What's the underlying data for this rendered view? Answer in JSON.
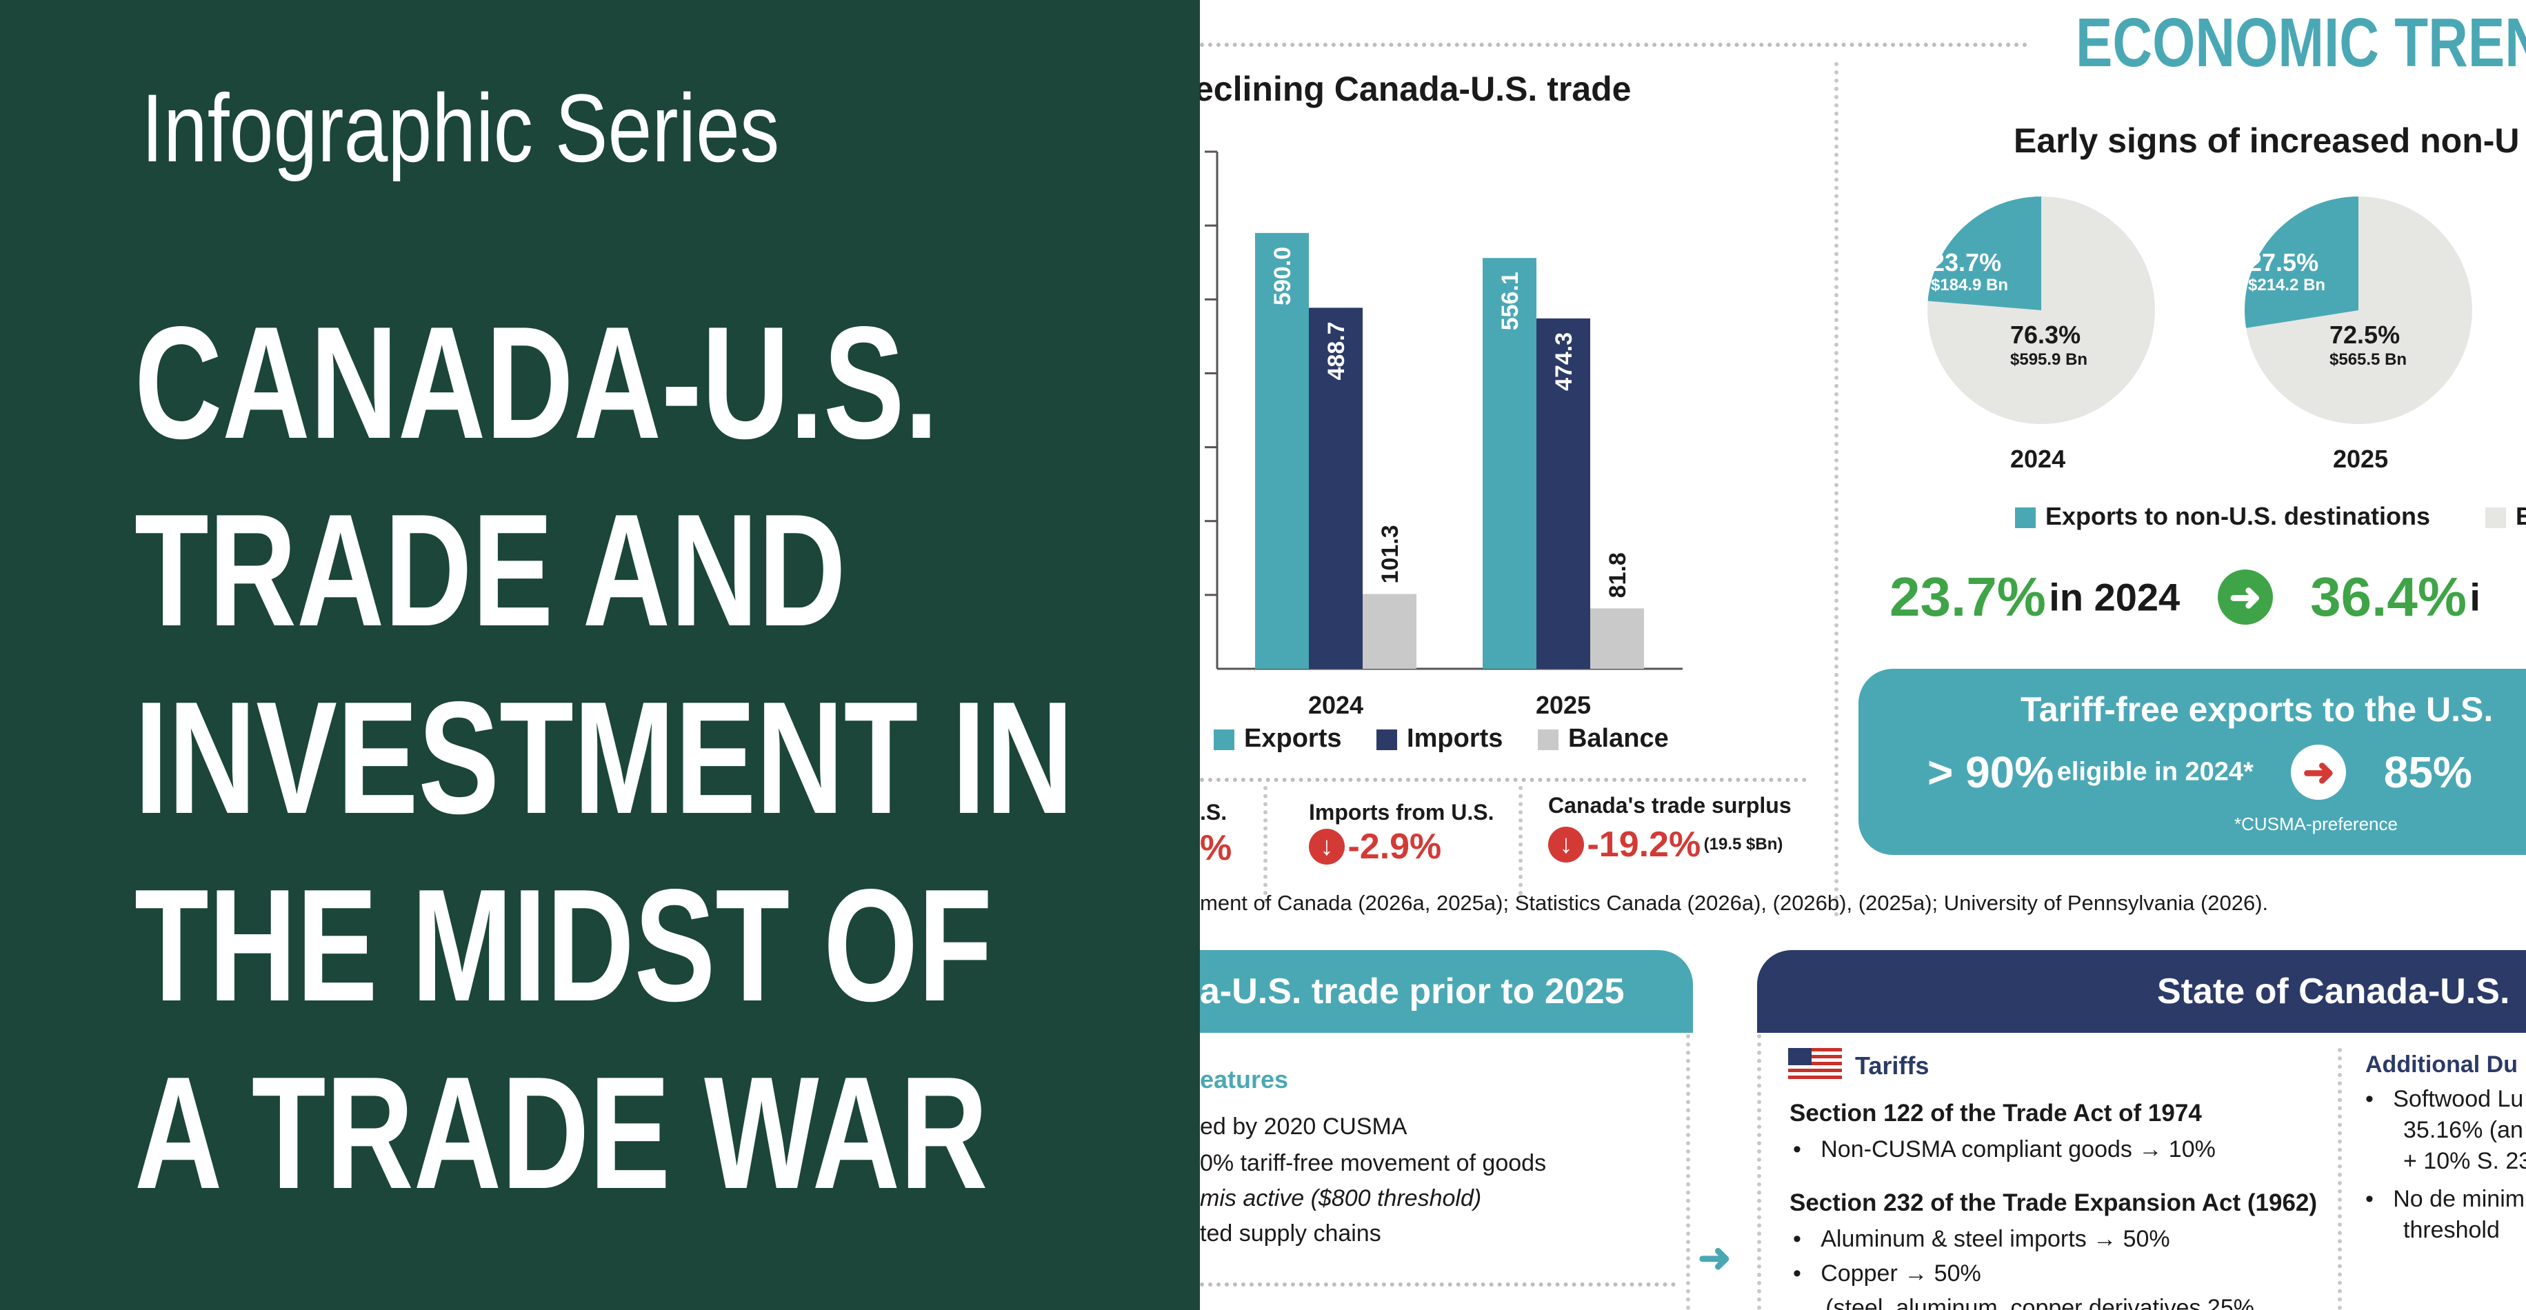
{
  "banner": {
    "series": "Infographic Series",
    "headline_lines": [
      "CANADA-U.S.",
      "TRADE AND",
      "INVESTMENT IN",
      "THE MIDST OF",
      "A TRADE WAR"
    ]
  },
  "infographic": {
    "section_title": "ECONOMIC TREN",
    "trade_chart_title": "eclining Canada-U.S. trade",
    "pie_title": "Early signs of increased non-U",
    "pies": [
      {
        "year": "2024",
        "nonus_pct": "23.7%",
        "nonus_bn": "$184.9 Bn",
        "us_pct": "76.3%",
        "us_bn": "$595.9 Bn",
        "nonus_share": 23.7
      },
      {
        "year": "2025",
        "nonus_pct": "27.5%",
        "nonus_bn": "$214.2 Bn",
        "us_pct": "72.5%",
        "us_bn": "$565.5 Bn",
        "nonus_share": 27.5
      }
    ],
    "pie_legend": {
      "nonus": "Exports to non-U.S. destinations",
      "us": "Ex"
    },
    "growth": {
      "from_value": "23.7%",
      "from_label": "in 2024",
      "to_value": "36.4%",
      "to_label": "i"
    },
    "tariff_box": {
      "title": "Tariff-free exports to the U.S.",
      "from_value": "> 90%",
      "from_label": "eligible in 2024*",
      "to_value": "85%",
      "footnote": "*CUSMA-preference"
    },
    "stats": [
      {
        "label": ".S.",
        "value": "%"
      },
      {
        "label": "Imports from U.S.",
        "value": "-2.9%"
      },
      {
        "label": "Canada's trade surplus",
        "value": "-19.2%",
        "note": "(19.5 $Bn)"
      }
    ],
    "sources": "ment of Canada (2026a, 2025a); Statistics Canada (2026a), (2026b), (2025a); University of Pennsylvania (2026).",
    "prior_box": {
      "title": "a-U.S. trade prior to 2025",
      "subtitle": "eatures",
      "items": [
        "ed by 2020 CUSMA",
        "0% tariff-free movement of goods",
        "mis active ($800 threshold)",
        "ted supply chains"
      ]
    },
    "state_box": {
      "title": "State of Canada-U.S.",
      "tariffs_label": "Tariffs",
      "s122_title": "Section 122 of the Trade Act of 1974",
      "s122_item": "Non-CUSMA compliant goods → 10%",
      "s232_title": "Section 232 of the Trade Expansion Act (1962)",
      "s232_items": [
        "Aluminum & steel imports → 50%",
        "Copper → 50%",
        "(steel, aluminum, copper derivatives 25%"
      ],
      "additional_label": "Additional Du",
      "additional_items": [
        {
          "line1": "Softwood Lu",
          "line2": "35.16% (an",
          "line3": "+ 10% S. 23"
        },
        {
          "line1": "No de minim",
          "line2": "threshold"
        }
      ]
    }
  },
  "chart_data": {
    "type": "bar",
    "title": "eclining Canada-U.S. trade",
    "categories": [
      "2024",
      "2025"
    ],
    "series": [
      {
        "name": "Exports",
        "values": [
          590.0,
          556.1
        ],
        "labels": [
          "590.0",
          "556.1"
        ],
        "color": "#4aa8b5"
      },
      {
        "name": "Imports",
        "values": [
          488.7,
          474.3
        ],
        "labels": [
          "488.7",
          "474.3"
        ],
        "color": "#2b3a67"
      },
      {
        "name": "Balance",
        "values": [
          101.3,
          81.8
        ],
        "labels": [
          "101.3",
          "81.8"
        ],
        "color": "#c9c9c9"
      }
    ],
    "ylim": [
      0,
      700
    ],
    "xlabel": "",
    "ylabel": "",
    "legend": "bottom"
  },
  "colors": {
    "banner_bg": "#1b4639",
    "teal": "#4aa8b5",
    "navy": "#2b3a67",
    "green": "#3fa447",
    "red": "#d33a36",
    "grey": "#c9c9c9"
  }
}
